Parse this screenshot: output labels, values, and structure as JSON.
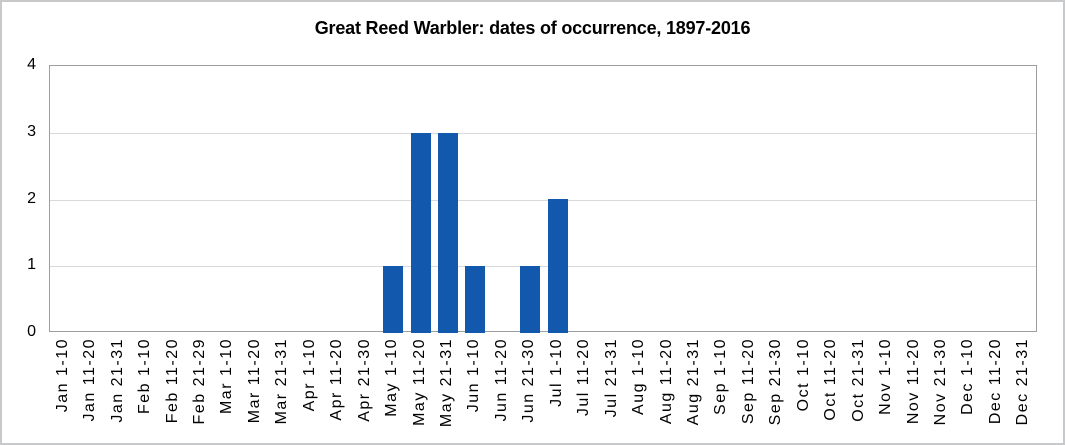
{
  "chart_data": {
    "type": "bar",
    "title": "Great Reed Warbler: dates of occurrence, 1897-2016",
    "categories": [
      "Jan 1-10",
      "Jan 11-20",
      "Jan 21-31",
      "Feb 1-10",
      "Feb 11-20",
      "Feb 21-29",
      "Mar 1-10",
      "Mar 11-20",
      "Mar 21-31",
      "Apr 1-10",
      "Apr 11-20",
      "Apr 21-30",
      "May 1-10",
      "May 11-20",
      "May 21-31",
      "Jun 1-10",
      "Jun 11-20",
      "Jun 21-30",
      "Jul 1-10",
      "Jul 11-20",
      "Jul 21-31",
      "Aug 1-10",
      "Aug 11-20",
      "Aug 21-31",
      "Sep 1-10",
      "Sep 11-20",
      "Sep 21-30",
      "Oct 1-10",
      "Oct 11-20",
      "Oct 21-31",
      "Nov 1-10",
      "Nov 11-20",
      "Nov 21-30",
      "Dec 1-10",
      "Dec 11-20",
      "Dec 21-31"
    ],
    "values": [
      0,
      0,
      0,
      0,
      0,
      0,
      0,
      0,
      0,
      0,
      0,
      0,
      1,
      3,
      3,
      1,
      0,
      1,
      2,
      0,
      0,
      0,
      0,
      0,
      0,
      0,
      0,
      0,
      0,
      0,
      0,
      0,
      0,
      0,
      0,
      0
    ],
    "xlabel": "",
    "ylabel": "",
    "ylim": [
      0,
      4
    ],
    "yticks": [
      0,
      1,
      2,
      3,
      4
    ],
    "grid": true,
    "legend": "none",
    "colors": {
      "bar": "#1259AE",
      "gridline": "#d9d9d9",
      "plot_border": "#9e9e9e",
      "text": "#000000",
      "outer_border": "#c7c9cb",
      "background": "#ffffff"
    }
  }
}
